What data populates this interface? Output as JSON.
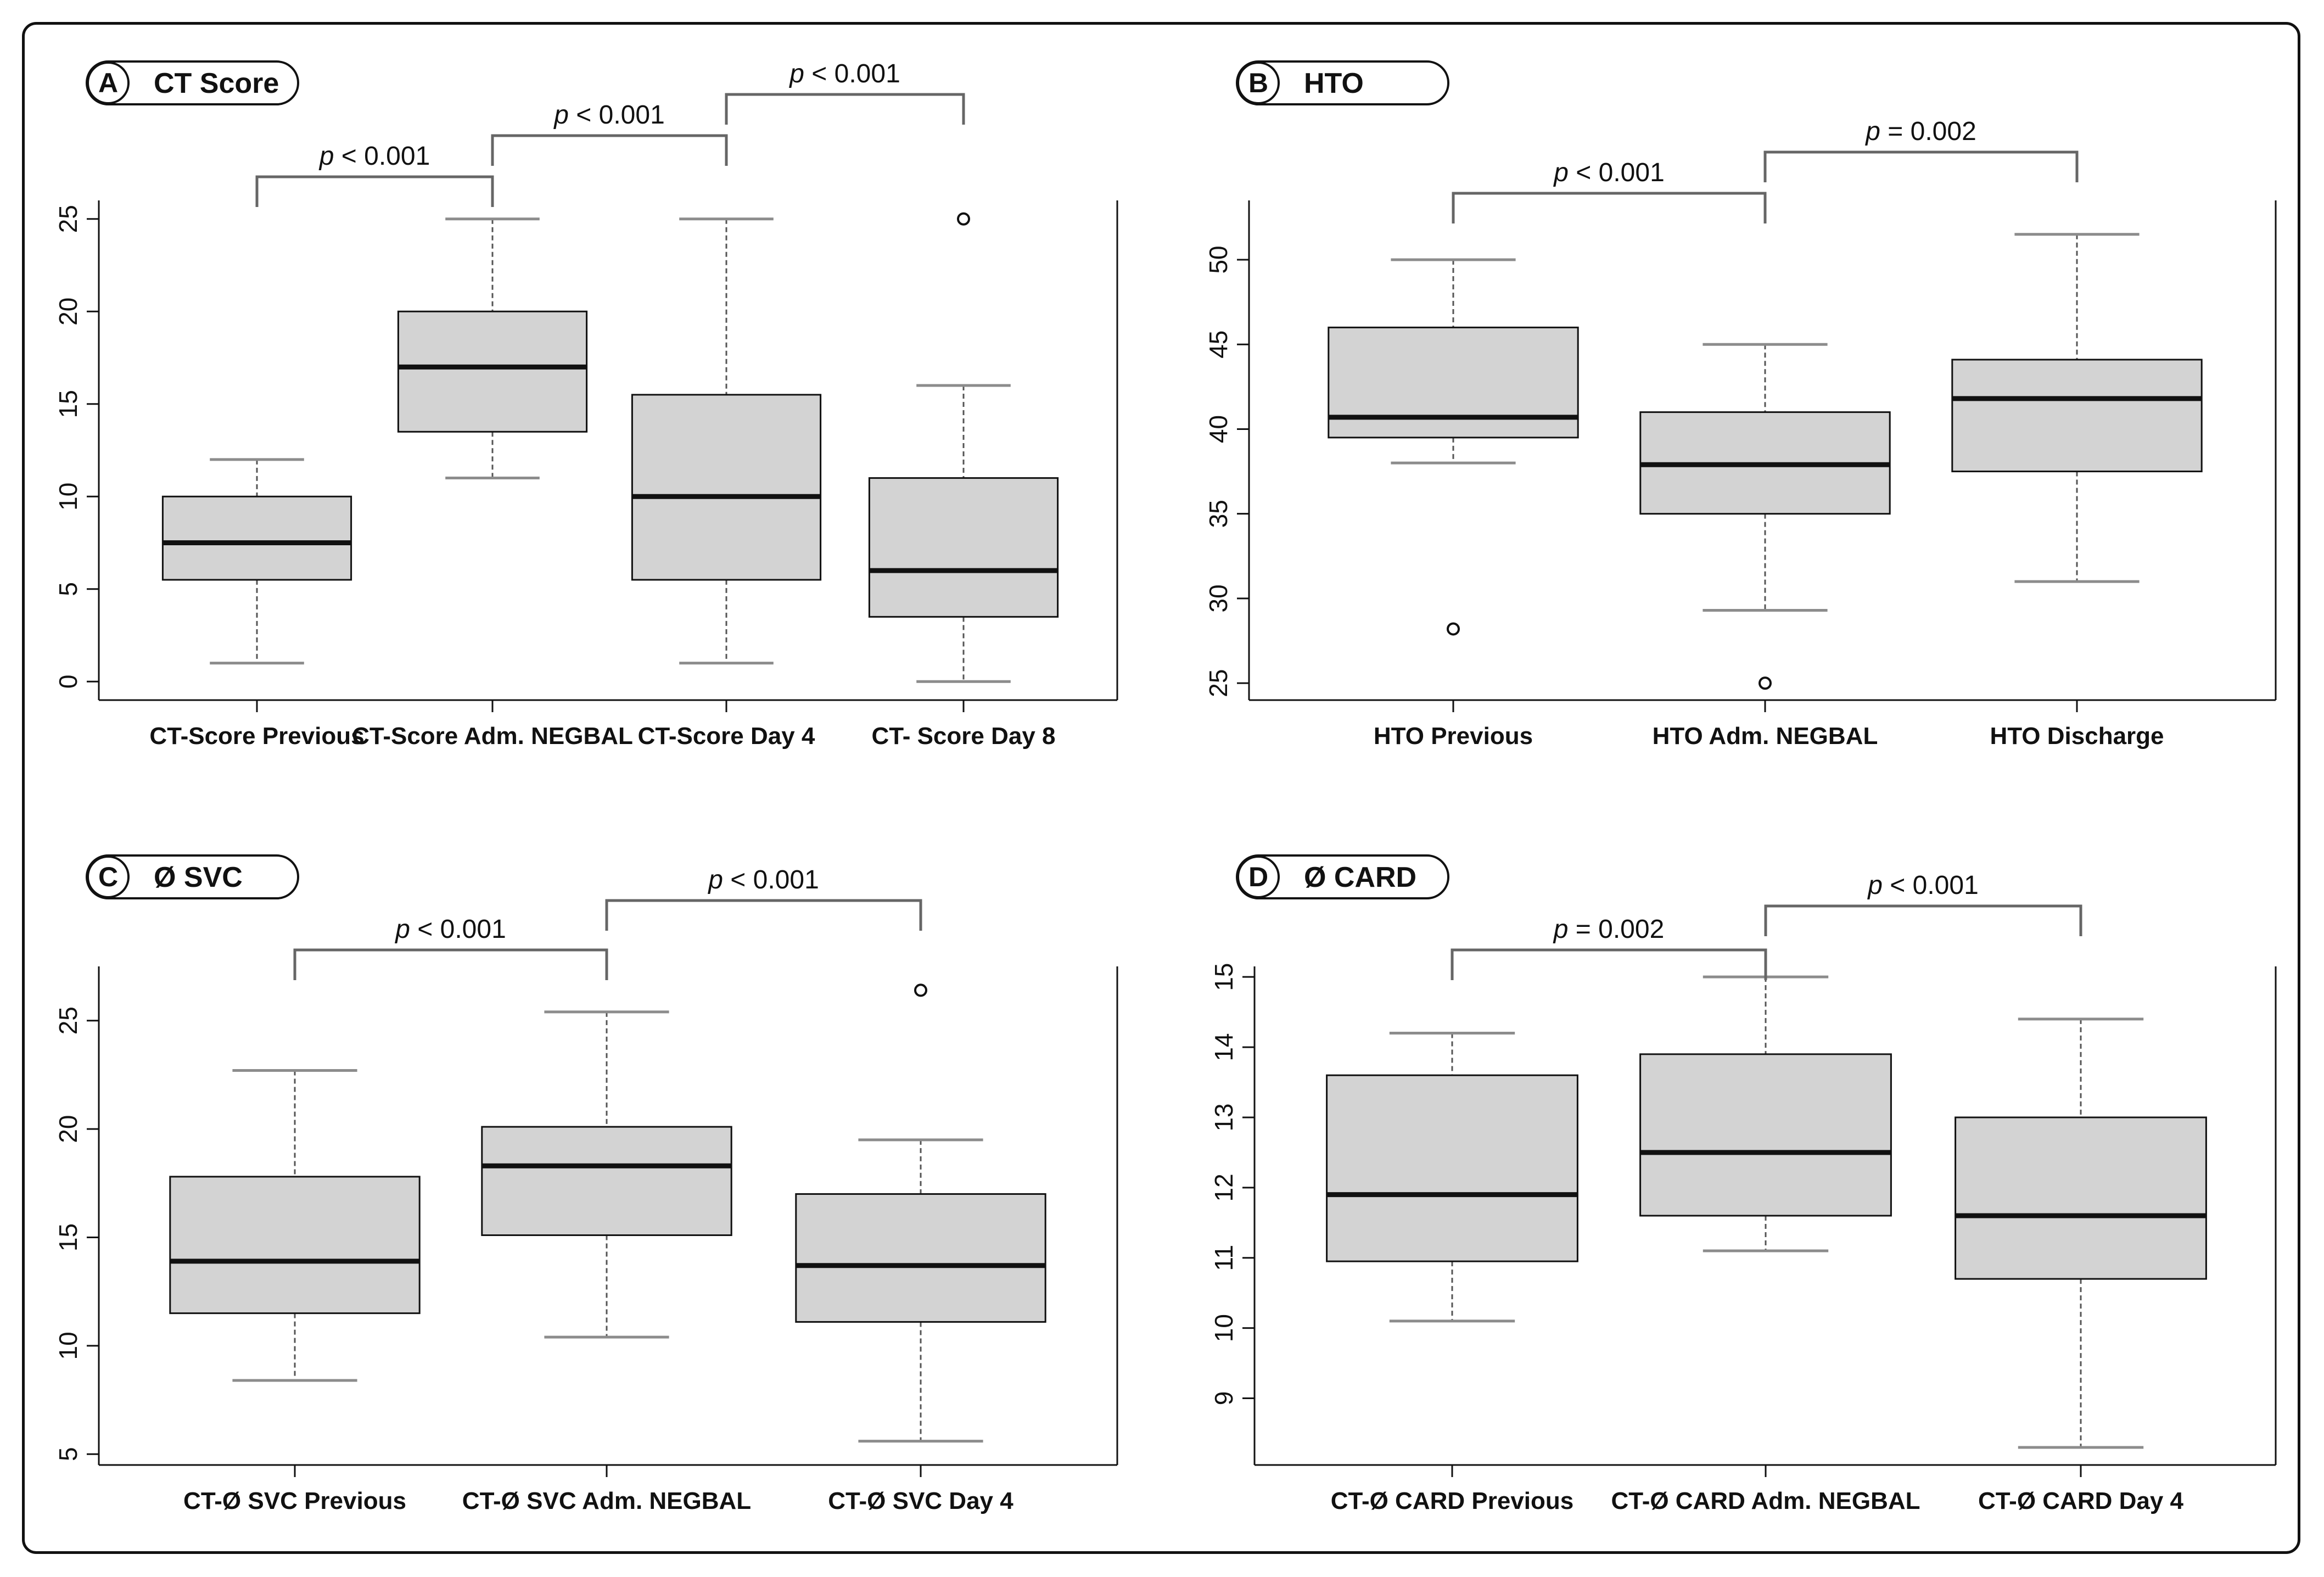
{
  "figure": {
    "chart_data": [
      {
        "type": "boxplot",
        "letter": "A",
        "title": "CT Score",
        "ylim": [
          -1,
          26
        ],
        "yticks": [
          0,
          5,
          10,
          15,
          20,
          25
        ],
        "categories": [
          "CT-Score Previous",
          "CT-Score Adm. NEGBAL",
          "CT-Score Day 4",
          "CT- Score Day 8"
        ],
        "boxes": [
          {
            "whisker_low": 1,
            "q1": 5.5,
            "median": 7.5,
            "q3": 10,
            "whisker_high": 12,
            "outliers": []
          },
          {
            "whisker_low": 11,
            "q1": 13.5,
            "median": 17,
            "q3": 20,
            "whisker_high": 25,
            "outliers": []
          },
          {
            "whisker_low": 1,
            "q1": 5.5,
            "median": 10,
            "q3": 15.5,
            "whisker_high": 25,
            "outliers": []
          },
          {
            "whisker_low": 0,
            "q1": 3.5,
            "median": 6,
            "q3": 11,
            "whisker_high": 16,
            "outliers": [
              25
            ]
          }
        ],
        "comparisons": [
          {
            "from": 0,
            "to": 1,
            "label": "p",
            "op": "< 0.001",
            "level": 0
          },
          {
            "from": 1,
            "to": 2,
            "label": "p",
            "op": "< 0.001",
            "level": 1
          },
          {
            "from": 2,
            "to": 3,
            "label": "p",
            "op": "< 0.001",
            "level": 2
          }
        ]
      },
      {
        "type": "boxplot",
        "letter": "B",
        "title": "HTO",
        "ylim": [
          24,
          53.5
        ],
        "yticks": [
          25,
          30,
          35,
          40,
          45,
          50
        ],
        "categories": [
          "HTO Previous",
          "HTO Adm. NEGBAL",
          "HTO Discharge"
        ],
        "boxes": [
          {
            "whisker_low": 38,
            "q1": 39.5,
            "median": 40.7,
            "q3": 46,
            "whisker_high": 50,
            "outliers": [
              28.2
            ]
          },
          {
            "whisker_low": 29.3,
            "q1": 35,
            "median": 37.9,
            "q3": 41,
            "whisker_high": 45,
            "outliers": [
              25
            ]
          },
          {
            "whisker_low": 31,
            "q1": 37.5,
            "median": 41.8,
            "q3": 44.1,
            "whisker_high": 51.5,
            "outliers": []
          }
        ],
        "comparisons": [
          {
            "from": 0,
            "to": 1,
            "label": "p",
            "op": "< 0.001",
            "level": 0
          },
          {
            "from": 1,
            "to": 2,
            "label": "p",
            "op": "= 0.002",
            "level": 1
          }
        ]
      },
      {
        "type": "boxplot",
        "letter": "C",
        "title": "Ø SVC",
        "ylim": [
          4.5,
          27.5
        ],
        "yticks": [
          5,
          10,
          15,
          20,
          25
        ],
        "categories": [
          "CT-Ø SVC Previous",
          "CT-Ø SVC Adm. NEGBAL",
          "CT-Ø SVC Day 4"
        ],
        "boxes": [
          {
            "whisker_low": 8.4,
            "q1": 11.5,
            "median": 13.9,
            "q3": 17.8,
            "whisker_high": 22.7,
            "outliers": []
          },
          {
            "whisker_low": 10.4,
            "q1": 15.1,
            "median": 18.3,
            "q3": 20.1,
            "whisker_high": 25.4,
            "outliers": []
          },
          {
            "whisker_low": 5.6,
            "q1": 11.1,
            "median": 13.7,
            "q3": 17,
            "whisker_high": 19.5,
            "outliers": [
              26.4
            ]
          }
        ],
        "comparisons": [
          {
            "from": 0,
            "to": 1,
            "label": "p",
            "op": "< 0.001",
            "level": 0
          },
          {
            "from": 1,
            "to": 2,
            "label": "p",
            "op": "< 0.001",
            "level": 1
          }
        ]
      },
      {
        "type": "boxplot",
        "letter": "D",
        "title": "Ø CARD",
        "ylim": [
          8.05,
          15.15
        ],
        "yticks": [
          9,
          10,
          11,
          12,
          13,
          14,
          15
        ],
        "categories": [
          "CT-Ø CARD Previous",
          "CT-Ø CARD Adm. NEGBAL",
          "CT-Ø CARD Day 4"
        ],
        "boxes": [
          {
            "whisker_low": 10.1,
            "q1": 10.95,
            "median": 11.9,
            "q3": 13.6,
            "whisker_high": 14.2,
            "outliers": []
          },
          {
            "whisker_low": 11.1,
            "q1": 11.6,
            "median": 12.5,
            "q3": 13.9,
            "whisker_high": 15,
            "outliers": []
          },
          {
            "whisker_low": 8.3,
            "q1": 10.7,
            "median": 11.6,
            "q3": 13,
            "whisker_high": 14.4,
            "outliers": []
          }
        ],
        "comparisons": [
          {
            "from": 0,
            "to": 1,
            "label": "p",
            "op": "= 0.002",
            "level": 0
          },
          {
            "from": 1,
            "to": 2,
            "label": "p",
            "op": "< 0.001",
            "level": 1
          }
        ]
      }
    ],
    "colors": {
      "box_fill": "#d3d3d3",
      "stroke": "#111111",
      "bracket": "#666666",
      "whisker": "#555555",
      "cap": "#8c8c8c"
    }
  }
}
